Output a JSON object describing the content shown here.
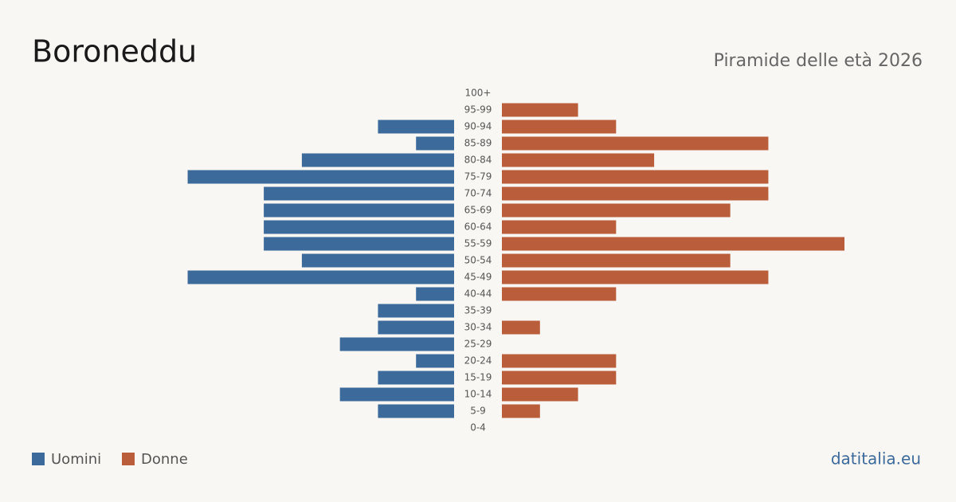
{
  "chart_data": {
    "type": "pyramid",
    "title": "Boroneddu",
    "subtitle": "Piramide delle età 2026",
    "source": "datitalia.eu",
    "categories": [
      "100+",
      "95-99",
      "90-94",
      "85-89",
      "80-84",
      "75-79",
      "70-74",
      "65-69",
      "60-64",
      "55-59",
      "50-54",
      "45-49",
      "40-44",
      "35-39",
      "30-34",
      "25-29",
      "20-24",
      "15-19",
      "10-14",
      "5-9",
      "0-4"
    ],
    "series": [
      {
        "name": "Uomini",
        "color": "#3b6a9b",
        "values": [
          0,
          0,
          2,
          1,
          4,
          7,
          5,
          5,
          5,
          5,
          4,
          7,
          1,
          2,
          2,
          3,
          1,
          2,
          3,
          2,
          0
        ]
      },
      {
        "name": "Donne",
        "color": "#b95d3b",
        "values": [
          0,
          2,
          3,
          7,
          4,
          7,
          7,
          6,
          3,
          9,
          6,
          7,
          3,
          0,
          1,
          0,
          3,
          3,
          2,
          1,
          0
        ]
      }
    ]
  }
}
